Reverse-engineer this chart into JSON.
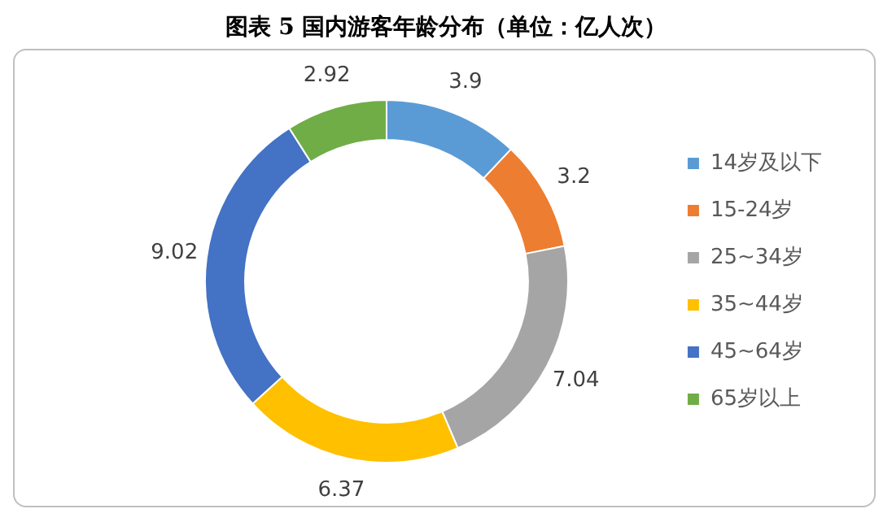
{
  "chart_data": {
    "type": "donut",
    "title": "图表 5   国内游客年龄分布（单位：亿人次）",
    "categories": [
      "14岁及以下",
      "15-24岁",
      "25~34岁",
      "35~44岁",
      "45~64岁",
      "65岁以上"
    ],
    "values": [
      3.9,
      3.2,
      7.04,
      6.37,
      9.02,
      2.92
    ],
    "colors": [
      "#5b9bd5",
      "#ed7d31",
      "#a5a5a5",
      "#ffc000",
      "#4472c4",
      "#70ad47"
    ],
    "data_labels": true,
    "legend": "right"
  }
}
